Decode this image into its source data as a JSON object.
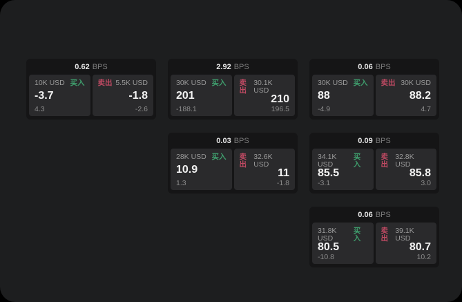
{
  "colors": {
    "buy": "#3f9e6d",
    "sell": "#c04a63",
    "app_background": "#1d1e1f",
    "card_background": "#151516",
    "panel_background": "#2a2a2c"
  },
  "labels": {
    "buy": "买入",
    "sell": "卖出",
    "bps": "BPS"
  },
  "cards": [
    {
      "bps": "0.62",
      "buy": {
        "amount": "10K USD",
        "value": "-3.7",
        "sub": "4.3"
      },
      "sell": {
        "amount": "5.5K USD",
        "value": "-1.8",
        "sub": "-2.6"
      }
    },
    {
      "bps": "2.92",
      "buy": {
        "amount": "30K USD",
        "value": "201",
        "sub": "-188.1"
      },
      "sell": {
        "amount": "30.1K USD",
        "value": "210",
        "sub": "196.5"
      }
    },
    {
      "bps": "0.06",
      "buy": {
        "amount": "30K USD",
        "value": "88",
        "sub": "-4.9"
      },
      "sell": {
        "amount": "30K USD",
        "value": "88.2",
        "sub": "4.7"
      }
    },
    {
      "bps": "0.03",
      "buy": {
        "amount": "28K USD",
        "value": "10.9",
        "sub": "1.3"
      },
      "sell": {
        "amount": "32.6K USD",
        "value": "11",
        "sub": "-1.8"
      }
    },
    {
      "bps": "0.09",
      "buy": {
        "amount": "34.1K USD",
        "value": "85.5",
        "sub": "-3.1"
      },
      "sell": {
        "amount": "32.8K USD",
        "value": "85.8",
        "sub": "3.0"
      }
    },
    {
      "bps": "0.06",
      "buy": {
        "amount": "31.8K USD",
        "value": "80.5",
        "sub": "-10.8"
      },
      "sell": {
        "amount": "39.1K USD",
        "value": "80.7",
        "sub": "10.2"
      }
    }
  ]
}
